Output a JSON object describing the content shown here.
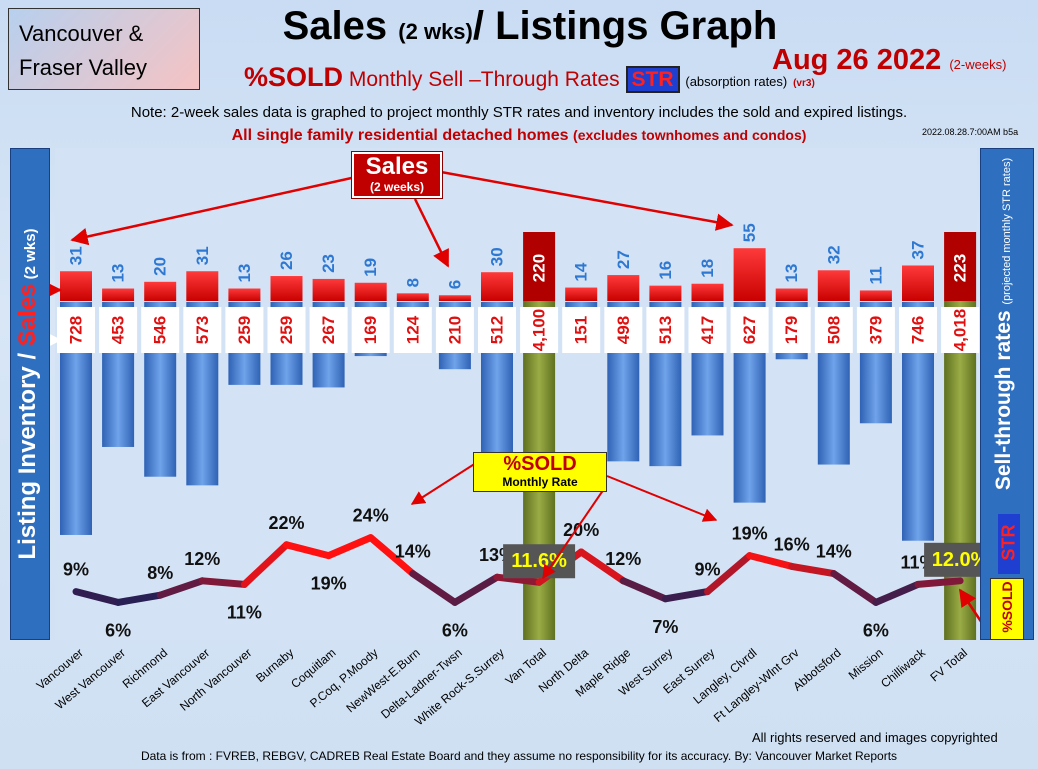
{
  "region_box": {
    "line1": "Vancouver &",
    "line2": "Fraser Valley"
  },
  "title": {
    "main": "Sales",
    "period": "(2 wks)",
    "rest": "/ Listings Graph"
  },
  "date": {
    "text": "Aug 26  2022",
    "suffix": "(2-weeks)"
  },
  "subtitle": {
    "pct": "%SOLD",
    "words": "Monthly Sell –Through Rates",
    "str": "STR",
    "abs": "(absorption rates)",
    "version": "(vr3)"
  },
  "note": "Note: 2-week sales data is graphed to project monthly STR rates and inventory includes the sold and expired listings.",
  "scope": {
    "main": "All single family residential detached homes",
    "sub": "(excludes townhomes and condos)"
  },
  "stamp": "2022.08.28.7:00AM b5a",
  "left_axis": {
    "a": "Listing Inventory / ",
    "b": "Sales",
    "c": " (2  wks)"
  },
  "right_axis": {
    "main": "Sell-through rates",
    "sub": "(projected monthly STR rates)"
  },
  "right_badges": {
    "str": "STR",
    "sold": "%SOLD"
  },
  "callouts": {
    "sales_word": "Sales",
    "sales_sub": "(2 weeks)",
    "sold_word": "%SOLD",
    "sold_sub": "Monthly Rate"
  },
  "footer": {
    "rights": "All rights reserved and  images copyrighted",
    "source": "Data is from : FVREB, REBGV, CADREB Real Estate Board and they assume no responsibility for its accuracy. By: Vancouver Market Reports"
  },
  "colors": {
    "sales_bar": "#ee1111",
    "inventory_bar": "#4a86d8",
    "total_bar": "#7e8f2e",
    "total_sales_bar": "#b00000",
    "line_high": "#ff1111",
    "line_low": "#14205a"
  },
  "chart_data": {
    "type": "bar",
    "categories": [
      "Vancouver",
      "West Vancouver",
      "Richmond",
      "East Vancouver",
      "North Vancouver",
      "Burnaby",
      "Coquitlam",
      "P.Coq, P.Moody",
      "NewWest-E.Burn",
      "Delta-Ladner-Twsn",
      "White Rock-S.Surrey",
      "Van Total",
      "North Delta",
      "Maple Ridge",
      "West Surrey",
      "East Surrey",
      "Langley, Clvrdl",
      "Ft Langley-Wlnt Grv",
      "Abbotsford",
      "Mission",
      "Chilliwack",
      "FV Total"
    ],
    "series": [
      {
        "name": "Sales",
        "values": [
          31,
          13,
          20,
          31,
          13,
          26,
          23,
          19,
          8,
          6,
          30,
          220,
          14,
          27,
          16,
          18,
          55,
          13,
          32,
          11,
          37,
          223
        ]
      },
      {
        "name": "Listing Inventory",
        "values": [
          728,
          453,
          546,
          573,
          259,
          259,
          267,
          169,
          124,
          210,
          512,
          4100,
          151,
          498,
          513,
          417,
          627,
          179,
          508,
          379,
          746,
          4018
        ]
      },
      {
        "name": "%SOLD",
        "values": [
          9,
          6,
          8,
          12,
          11,
          22,
          19,
          24,
          14,
          6,
          13,
          11.6,
          20,
          12,
          7,
          9,
          19,
          16,
          14,
          6,
          11,
          12.0
        ]
      }
    ],
    "sales_labels": [
      "31",
      "13",
      "20",
      "31",
      "13",
      "26",
      "23",
      "19",
      "8",
      "6",
      "30",
      "220",
      "14",
      "27",
      "16",
      "18",
      "55",
      "13",
      "32",
      "11",
      "37",
      "223"
    ],
    "inventory_labels": [
      "728",
      "453",
      "546",
      "573",
      "259",
      "259",
      "267",
      "169",
      "124",
      "210",
      "512",
      "4,100",
      "151",
      "498",
      "513",
      "417",
      "627",
      "179",
      "508",
      "379",
      "746",
      "4,018"
    ],
    "sold_labels": [
      "9%",
      "6%",
      "8%",
      "12%",
      "11%",
      "22%",
      "19%",
      "24%",
      "14%",
      "6%",
      "13%",
      "11.6%",
      "20%",
      "12%",
      "7%",
      "9%",
      "19%",
      "16%",
      "14%",
      "6%",
      "11%",
      "12.0%"
    ],
    "total_categories": [
      "Van Total",
      "FV Total"
    ]
  }
}
